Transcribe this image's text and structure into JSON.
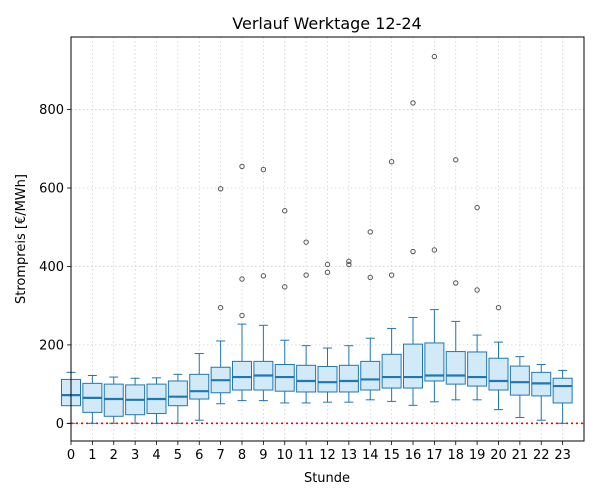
{
  "chart_data": {
    "type": "box",
    "title": "Verlauf Werktage 12-24",
    "xlabel": "Stunde",
    "ylabel": "Strompreis [€/MWh]",
    "xlim": [
      0,
      24
    ],
    "ylim": [
      -45,
      985
    ],
    "yticks": [
      0,
      200,
      400,
      600,
      800
    ],
    "grid": true,
    "reference_line": {
      "y": 0,
      "color": "#ff0000",
      "style": "dotted"
    },
    "colors": {
      "box_fill": "#d2eaf8",
      "box_edge": "#1f77b4",
      "median": "#1f77b4",
      "outlier_edge": "#555555"
    },
    "categories": [
      "0",
      "1",
      "2",
      "3",
      "4",
      "5",
      "6",
      "7",
      "8",
      "9",
      "10",
      "11",
      "12",
      "13",
      "14",
      "15",
      "16",
      "17",
      "18",
      "19",
      "20",
      "21",
      "22",
      "23"
    ],
    "boxes": [
      {
        "x": 0,
        "min": 0,
        "q1": 45,
        "median": 72,
        "q3": 112,
        "max": 130,
        "outliers": []
      },
      {
        "x": 1,
        "min": 0,
        "q1": 28,
        "median": 65,
        "q3": 102,
        "max": 122,
        "outliers": []
      },
      {
        "x": 2,
        "min": 0,
        "q1": 18,
        "median": 62,
        "q3": 100,
        "max": 118,
        "outliers": []
      },
      {
        "x": 3,
        "min": 0,
        "q1": 22,
        "median": 60,
        "q3": 98,
        "max": 115,
        "outliers": []
      },
      {
        "x": 4,
        "min": 0,
        "q1": 25,
        "median": 62,
        "q3": 100,
        "max": 116,
        "outliers": []
      },
      {
        "x": 5,
        "min": 0,
        "q1": 45,
        "median": 68,
        "q3": 108,
        "max": 125,
        "outliers": []
      },
      {
        "x": 6,
        "min": 8,
        "q1": 62,
        "median": 82,
        "q3": 125,
        "max": 178,
        "outliers": []
      },
      {
        "x": 7,
        "min": 50,
        "q1": 78,
        "median": 110,
        "q3": 143,
        "max": 210,
        "outliers": [
          295,
          598
        ]
      },
      {
        "x": 8,
        "min": 58,
        "q1": 85,
        "median": 118,
        "q3": 158,
        "max": 253,
        "outliers": [
          275,
          368,
          655
        ]
      },
      {
        "x": 9,
        "min": 58,
        "q1": 85,
        "median": 122,
        "q3": 158,
        "max": 250,
        "outliers": [
          376,
          647
        ]
      },
      {
        "x": 10,
        "min": 52,
        "q1": 82,
        "median": 118,
        "q3": 150,
        "max": 212,
        "outliers": [
          348,
          542
        ]
      },
      {
        "x": 11,
        "min": 52,
        "q1": 80,
        "median": 108,
        "q3": 148,
        "max": 198,
        "outliers": [
          378,
          462
        ]
      },
      {
        "x": 12,
        "min": 54,
        "q1": 80,
        "median": 105,
        "q3": 145,
        "max": 192,
        "outliers": [
          385,
          405
        ]
      },
      {
        "x": 13,
        "min": 54,
        "q1": 80,
        "median": 108,
        "q3": 148,
        "max": 198,
        "outliers": [
          405,
          413
        ]
      },
      {
        "x": 14,
        "min": 60,
        "q1": 85,
        "median": 112,
        "q3": 158,
        "max": 217,
        "outliers": [
          372,
          488
        ]
      },
      {
        "x": 15,
        "min": 56,
        "q1": 90,
        "median": 118,
        "q3": 176,
        "max": 242,
        "outliers": [
          378,
          667
        ]
      },
      {
        "x": 16,
        "min": 46,
        "q1": 90,
        "median": 118,
        "q3": 202,
        "max": 270,
        "outliers": [
          438,
          817
        ]
      },
      {
        "x": 17,
        "min": 55,
        "q1": 108,
        "median": 122,
        "q3": 205,
        "max": 290,
        "outliers": [
          442,
          935
        ]
      },
      {
        "x": 18,
        "min": 60,
        "q1": 100,
        "median": 122,
        "q3": 183,
        "max": 260,
        "outliers": [
          358,
          672
        ]
      },
      {
        "x": 19,
        "min": 60,
        "q1": 95,
        "median": 118,
        "q3": 182,
        "max": 225,
        "outliers": [
          340,
          550
        ]
      },
      {
        "x": 20,
        "min": 35,
        "q1": 85,
        "median": 108,
        "q3": 166,
        "max": 207,
        "outliers": [
          295
        ]
      },
      {
        "x": 21,
        "min": 15,
        "q1": 72,
        "median": 105,
        "q3": 146,
        "max": 170,
        "outliers": []
      },
      {
        "x": 22,
        "min": 8,
        "q1": 70,
        "median": 102,
        "q3": 130,
        "max": 150,
        "outliers": []
      },
      {
        "x": 23,
        "min": 0,
        "q1": 52,
        "median": 95,
        "q3": 115,
        "max": 135,
        "outliers": []
      }
    ]
  }
}
